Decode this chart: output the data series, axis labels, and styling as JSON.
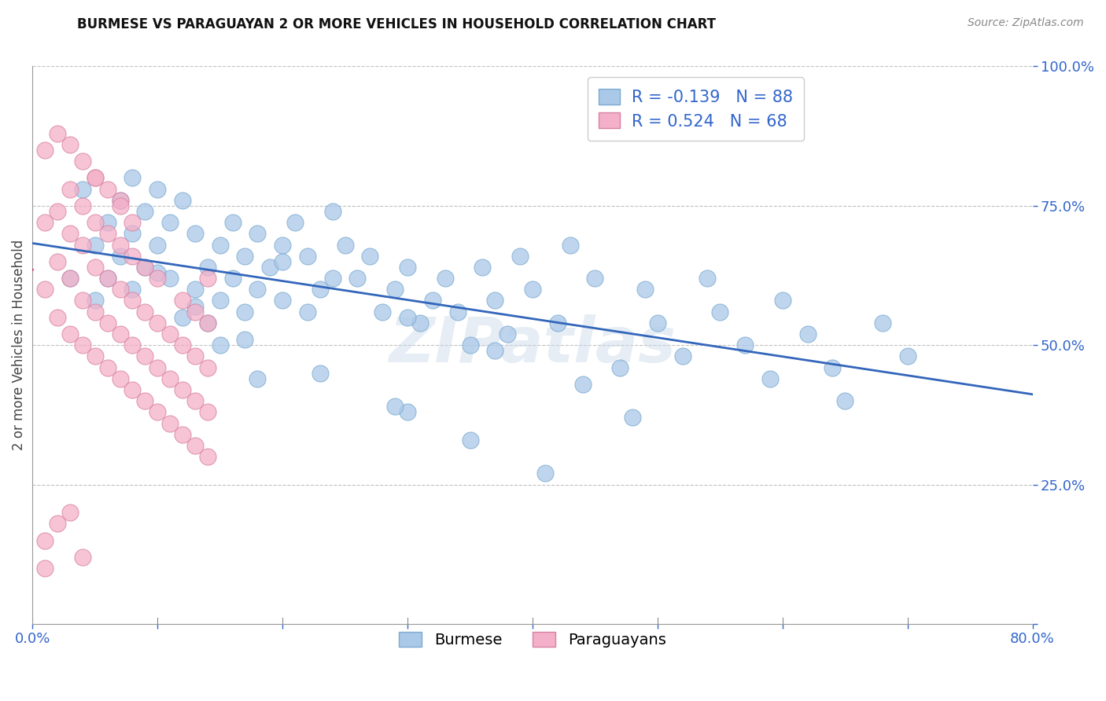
{
  "title": "BURMESE VS PARAGUAYAN 2 OR MORE VEHICLES IN HOUSEHOLD CORRELATION CHART",
  "source": "Source: ZipAtlas.com",
  "ylabel": "2 or more Vehicles in Household",
  "xlim": [
    0.0,
    0.8
  ],
  "ylim": [
    0.0,
    1.0
  ],
  "xticks": [
    0.0,
    0.1,
    0.2,
    0.3,
    0.4,
    0.5,
    0.6,
    0.7,
    0.8
  ],
  "xticklabels": [
    "0.0%",
    "",
    "",
    "",
    "",
    "",
    "",
    "",
    "80.0%"
  ],
  "yticks": [
    0.0,
    0.25,
    0.5,
    0.75,
    1.0
  ],
  "yticklabels": [
    "",
    "25.0%",
    "50.0%",
    "75.0%",
    "100.0%"
  ],
  "burmese_face": "#aac8e8",
  "burmese_edge": "#7aaad0",
  "paraguayan_face": "#f4b0c8",
  "paraguayan_edge": "#d880a0",
  "trend_burmese": "#3366bb",
  "trend_paraguayan": "#cc3366",
  "R_burmese": -0.139,
  "N_burmese": 88,
  "R_paraguayan": 0.524,
  "N_paraguayan": 68,
  "label_burmese": "Burmese",
  "label_paraguayan": "Paraguayans",
  "watermark": "ZIPatlas",
  "accent_color": "#3366cc",
  "burmese_x": [
    0.03,
    0.04,
    0.05,
    0.05,
    0.06,
    0.06,
    0.07,
    0.07,
    0.08,
    0.08,
    0.08,
    0.09,
    0.09,
    0.1,
    0.1,
    0.11,
    0.11,
    0.12,
    0.12,
    0.13,
    0.13,
    0.14,
    0.14,
    0.15,
    0.15,
    0.16,
    0.16,
    0.17,
    0.17,
    0.18,
    0.18,
    0.19,
    0.2,
    0.2,
    0.21,
    0.22,
    0.23,
    0.24,
    0.25,
    0.26,
    0.27,
    0.28,
    0.29,
    0.3,
    0.31,
    0.32,
    0.33,
    0.34,
    0.35,
    0.36,
    0.37,
    0.38,
    0.39,
    0.4,
    0.42,
    0.43,
    0.45,
    0.47,
    0.49,
    0.5,
    0.52,
    0.54,
    0.55,
    0.57,
    0.59,
    0.6,
    0.62,
    0.64,
    0.65,
    0.68,
    0.7,
    0.3,
    0.22,
    0.15,
    0.18,
    0.24,
    0.3,
    0.37,
    0.44,
    0.48,
    0.1,
    0.13,
    0.17,
    0.23,
    0.29,
    0.35,
    0.41,
    0.2
  ],
  "burmese_y": [
    0.62,
    0.78,
    0.68,
    0.58,
    0.72,
    0.62,
    0.76,
    0.66,
    0.8,
    0.7,
    0.6,
    0.74,
    0.64,
    0.78,
    0.68,
    0.72,
    0.62,
    0.76,
    0.55,
    0.7,
    0.6,
    0.64,
    0.54,
    0.68,
    0.58,
    0.62,
    0.72,
    0.56,
    0.66,
    0.6,
    0.7,
    0.64,
    0.68,
    0.58,
    0.72,
    0.66,
    0.6,
    0.74,
    0.68,
    0.62,
    0.66,
    0.56,
    0.6,
    0.64,
    0.54,
    0.58,
    0.62,
    0.56,
    0.5,
    0.64,
    0.58,
    0.52,
    0.66,
    0.6,
    0.54,
    0.68,
    0.62,
    0.46,
    0.6,
    0.54,
    0.48,
    0.62,
    0.56,
    0.5,
    0.44,
    0.58,
    0.52,
    0.46,
    0.4,
    0.54,
    0.48,
    0.38,
    0.56,
    0.5,
    0.44,
    0.62,
    0.55,
    0.49,
    0.43,
    0.37,
    0.63,
    0.57,
    0.51,
    0.45,
    0.39,
    0.33,
    0.27,
    0.65
  ],
  "paraguayan_x": [
    0.01,
    0.01,
    0.02,
    0.02,
    0.02,
    0.03,
    0.03,
    0.03,
    0.03,
    0.04,
    0.04,
    0.04,
    0.04,
    0.05,
    0.05,
    0.05,
    0.05,
    0.05,
    0.06,
    0.06,
    0.06,
    0.06,
    0.07,
    0.07,
    0.07,
    0.07,
    0.07,
    0.08,
    0.08,
    0.08,
    0.08,
    0.09,
    0.09,
    0.09,
    0.09,
    0.1,
    0.1,
    0.1,
    0.1,
    0.11,
    0.11,
    0.11,
    0.12,
    0.12,
    0.12,
    0.12,
    0.13,
    0.13,
    0.13,
    0.13,
    0.14,
    0.14,
    0.14,
    0.14,
    0.14,
    0.01,
    0.02,
    0.03,
    0.04,
    0.05,
    0.06,
    0.07,
    0.08,
    0.01,
    0.02,
    0.03,
    0.04,
    0.01
  ],
  "paraguayan_y": [
    0.6,
    0.72,
    0.55,
    0.65,
    0.74,
    0.52,
    0.62,
    0.7,
    0.78,
    0.5,
    0.58,
    0.68,
    0.75,
    0.48,
    0.56,
    0.64,
    0.72,
    0.8,
    0.46,
    0.54,
    0.62,
    0.7,
    0.44,
    0.52,
    0.6,
    0.68,
    0.76,
    0.42,
    0.5,
    0.58,
    0.66,
    0.4,
    0.48,
    0.56,
    0.64,
    0.38,
    0.46,
    0.54,
    0.62,
    0.36,
    0.44,
    0.52,
    0.34,
    0.42,
    0.5,
    0.58,
    0.32,
    0.4,
    0.48,
    0.56,
    0.3,
    0.38,
    0.46,
    0.54,
    0.62,
    0.85,
    0.88,
    0.86,
    0.83,
    0.8,
    0.78,
    0.75,
    0.72,
    0.15,
    0.18,
    0.2,
    0.12,
    0.1
  ]
}
